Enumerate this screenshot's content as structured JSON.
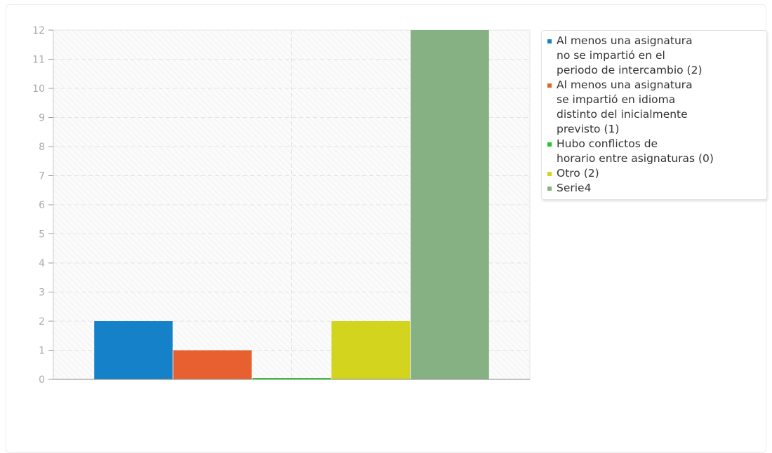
{
  "chart_data": {
    "type": "bar",
    "ylim": [
      0,
      12
    ],
    "yticks": [
      "0",
      "1",
      "2",
      "3",
      "4",
      "5",
      "6",
      "7",
      "8",
      "9",
      "10",
      "11",
      "12"
    ],
    "grid": true,
    "legend_position": "right",
    "series": [
      {
        "name": "Al menos una asignatura no se impartió en el periodo de intercambio (2)",
        "value": 2,
        "color": "#1581c8"
      },
      {
        "name": "Al menos una asignatura se impartió en idioma distinto del inicialmente previsto (1)",
        "value": 1,
        "color": "#e8602f"
      },
      {
        "name": "Hubo conflictos de horario entre asignaturas (0)",
        "value": 0,
        "color": "#25c825"
      },
      {
        "name": "Otro (2)",
        "value": 2,
        "color": "#d2d41e"
      },
      {
        "name": "Serie4",
        "value": 12,
        "color": "#86b283"
      }
    ]
  },
  "legend": {
    "items": [
      {
        "lines": [
          "Al menos una asignatura",
          "no se impartió en el",
          "periodo de intercambio (2)"
        ],
        "color": "#1581c8"
      },
      {
        "lines": [
          "Al menos una asignatura",
          "se impartió en idioma",
          "distinto del inicialmente",
          "previsto (1)"
        ],
        "color": "#e8602f"
      },
      {
        "lines": [
          "Hubo conflictos de",
          "horario entre asignaturas (0)"
        ],
        "color": "#25c825"
      },
      {
        "lines": [
          "Otro (2)"
        ],
        "color": "#d2d41e"
      },
      {
        "lines": [
          "Serie4"
        ],
        "color": "#86b283"
      }
    ]
  }
}
